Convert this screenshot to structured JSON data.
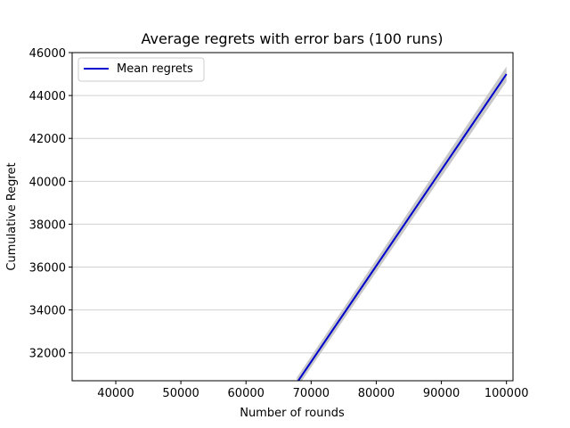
{
  "chart_data": {
    "type": "line",
    "title": "Average regrets with error bars (100 runs)",
    "xlabel": "Number of rounds",
    "ylabel": "Cumulative Regret",
    "xlim": [
      33300,
      101000
    ],
    "ylim": [
      30700,
      46000
    ],
    "xticks": [
      40000,
      50000,
      60000,
      70000,
      80000,
      90000,
      100000
    ],
    "yticks": [
      32000,
      34000,
      36000,
      38000,
      40000,
      42000,
      44000,
      46000
    ],
    "grid": "horizontal",
    "legend_position": "upper left",
    "series": [
      {
        "name": "Mean regrets",
        "color": "#0000cc",
        "x": [
          67800,
          100000
        ],
        "y": [
          30600,
          45000
        ]
      }
    ],
    "error_band": {
      "color": "#c8c8c8",
      "x": [
        67800,
        100000
      ],
      "y_lower": [
        30350,
        44650
      ],
      "y_upper": [
        30850,
        45350
      ]
    }
  }
}
